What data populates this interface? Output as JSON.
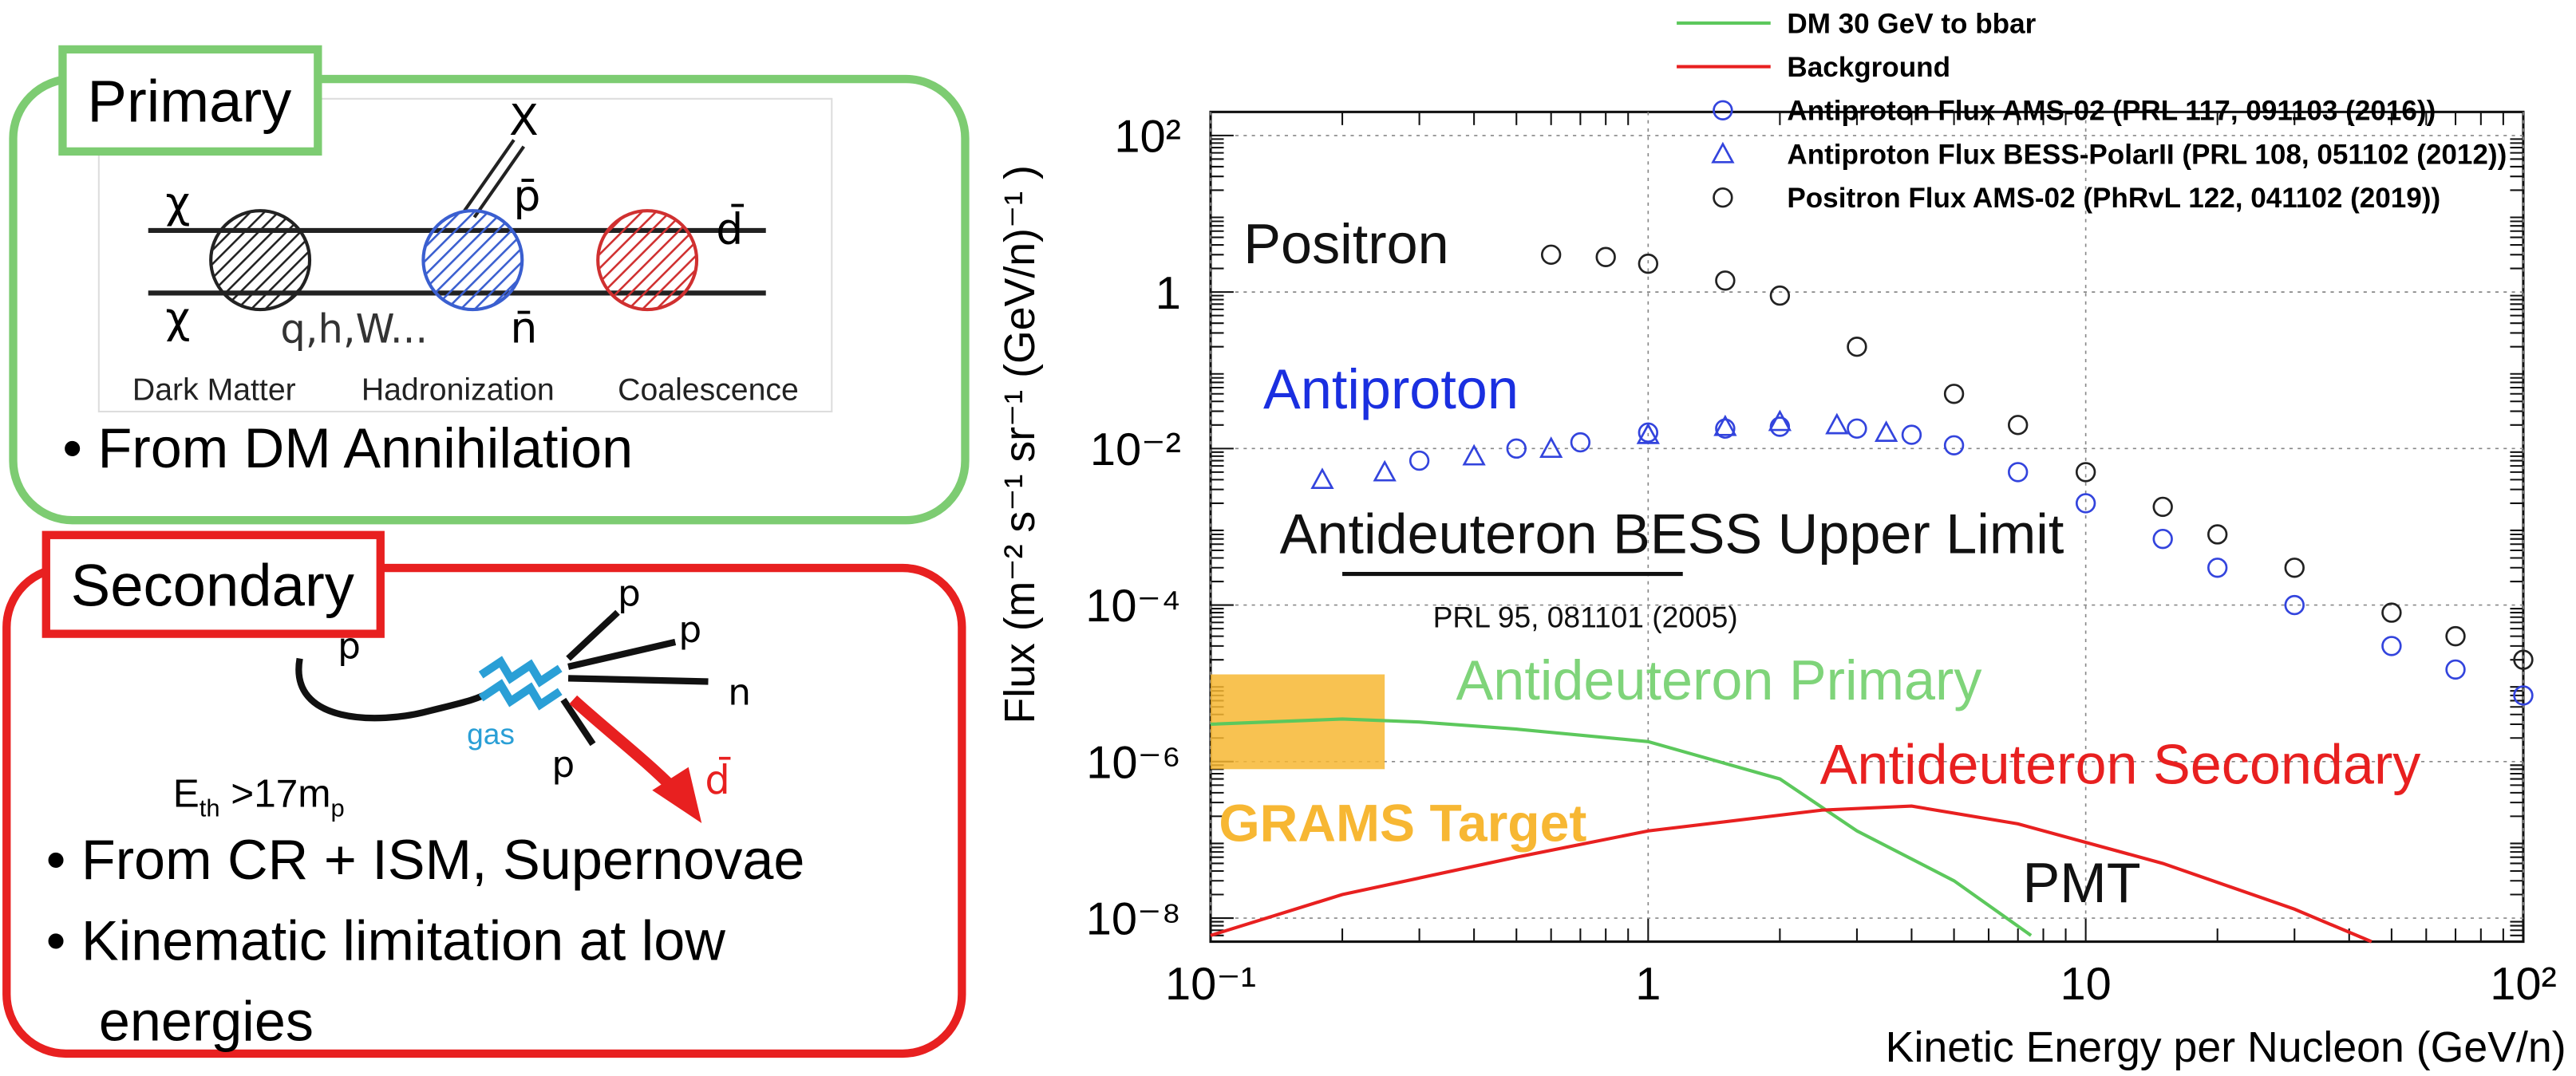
{
  "primary": {
    "title": "Primary",
    "diagram": {
      "chi_top": "χ",
      "chi_bottom": "χ",
      "x": "X",
      "pbar": "p̄",
      "dbar": "d̄",
      "nbar": "n̄",
      "quarks": "q,h,W...",
      "stage_1": "Dark Matter",
      "stage_2": "Hadronization",
      "stage_3": "Coalescence"
    },
    "bullets": [
      "From DM Annihilation"
    ]
  },
  "secondary": {
    "title": "Secondary",
    "diagram": {
      "p_in": "p",
      "p_out_1": "p",
      "p_out_2": "p",
      "n_out": "n",
      "p_out_3": "p",
      "gas": "gas",
      "dbar": "d̄",
      "threshold": [
        "E",
        "th",
        " >17m",
        "p"
      ]
    },
    "bullets": [
      "From CR + ISM, Supernovae",
      "Kinematic limitation at low",
      "energies"
    ]
  },
  "chart_data": {
    "type": "line",
    "x_label": "Kinetic Energy per Nucleon (GeV/n)",
    "y_label": "Flux (m⁻² s⁻¹ sr⁻¹ (GeV/n)⁻¹ )",
    "log_x": true,
    "log_y": true,
    "grid": true,
    "legend": "top",
    "xlim": [
      0.1,
      100
    ],
    "ylim": [
      5e-09,
      200
    ],
    "xticks": [
      {
        "value": 0.1,
        "label": "10⁻¹"
      },
      1,
      10,
      {
        "value": 100,
        "label": "10²"
      }
    ],
    "yticks": [
      {
        "value": 1e-08,
        "label": "10⁻⁸"
      },
      {
        "value": 1e-06,
        "label": "10⁻⁶"
      },
      {
        "value": 0.0001,
        "label": "10⁻⁴"
      },
      {
        "value": 0.01,
        "label": "10⁻²"
      },
      1,
      {
        "value": 100,
        "label": "10²"
      }
    ],
    "series": [
      {
        "name": "DM 30 GeV to bbar",
        "color": "#5cc85c",
        "marker": "none",
        "x": [
          0.1,
          0.2,
          0.3,
          0.5,
          1,
          2,
          3,
          5,
          7.5
        ],
        "values": [
          3e-06,
          3.5e-06,
          3.2e-06,
          2.6e-06,
          1.8e-06,
          6e-07,
          1.3e-07,
          3e-08,
          6e-09
        ]
      },
      {
        "name": "Background",
        "color": "#e82020",
        "marker": "none",
        "x": [
          0.1,
          0.2,
          0.5,
          1,
          2.5,
          4,
          7,
          15,
          30,
          45
        ],
        "values": [
          6e-09,
          2e-08,
          6e-08,
          1.3e-07,
          2.4e-07,
          2.7e-07,
          1.6e-07,
          5e-08,
          1.3e-08,
          5e-09
        ]
      },
      {
        "name": "Antiproton Flux AMS-02 (PRL 117, 091103 (2016))",
        "color": "#3344dd",
        "marker": "circle",
        "x": [
          0.3,
          0.5,
          0.7,
          1,
          1.5,
          2,
          3,
          4,
          5,
          7,
          10,
          15,
          20,
          30,
          50,
          70,
          100
        ],
        "values": [
          0.007,
          0.01,
          0.012,
          0.016,
          0.018,
          0.019,
          0.018,
          0.015,
          0.011,
          0.005,
          0.002,
          0.0007,
          0.0003,
          0.0001,
          3e-05,
          1.5e-05,
          7e-06
        ]
      },
      {
        "name": "Antiproton Flux BESS-PolarII (PRL 108, 051102 (2012))",
        "color": "#3344dd",
        "marker": "triangle",
        "x": [
          0.18,
          0.25,
          0.4,
          0.6,
          1,
          1.5,
          2,
          2.7,
          3.5
        ],
        "values": [
          0.004,
          0.005,
          0.008,
          0.01,
          0.015,
          0.019,
          0.022,
          0.02,
          0.016
        ]
      },
      {
        "name": "Positron Flux AMS-02 (PhRvL 122, 041102 (2019))",
        "color": "#222222",
        "marker": "circle",
        "x": [
          0.6,
          0.8,
          1,
          1.5,
          2,
          3,
          5,
          7,
          10,
          15,
          20,
          30,
          50,
          70,
          100
        ],
        "values": [
          3,
          2.8,
          2.3,
          1.4,
          0.9,
          0.2,
          0.05,
          0.02,
          0.005,
          0.0018,
          0.0008,
          0.0003,
          8e-05,
          4e-05,
          2e-05
        ]
      }
    ],
    "annotations": [
      {
        "text": "Positron",
        "color": "#111111"
      },
      {
        "text": "Antiproton",
        "color": "#1a2fe0"
      },
      {
        "text": "Antideuteron BESS Upper Limit",
        "color": "#111111"
      },
      {
        "text": "PRL 95, 081101 (2005)",
        "color": "#111111"
      },
      {
        "text": "Antideuteron Primary",
        "color": "#7fd47a"
      },
      {
        "text": "Antideuteron Secondary",
        "color": "#e82020"
      },
      {
        "text": "GRAMS Target",
        "color": "#f7b733"
      },
      {
        "text": "PMT",
        "color": "#111111"
      }
    ],
    "bess_limit": {
      "x": [
        0.2,
        1.2
      ],
      "y": 0.00025,
      "color": "#111111"
    },
    "grams_target": {
      "x": [
        0.1,
        0.25
      ],
      "y": [
        8e-07,
        1.3e-05
      ],
      "color": "#f7b733"
    }
  }
}
